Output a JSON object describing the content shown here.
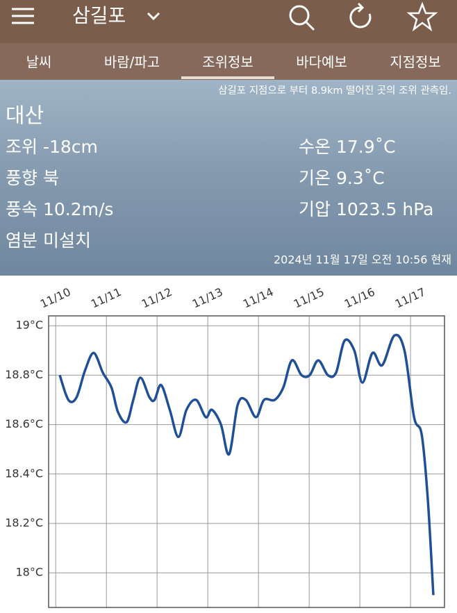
{
  "header": {
    "title": "삼길포"
  },
  "tabs": [
    "날씨",
    "바람/파고",
    "조위정보",
    "바다예보",
    "지점정보"
  ],
  "active_tab": 2,
  "info": {
    "note": "삼길포 지점으로 부터 8.9km 떨어진 곳의 조위 관측임.",
    "station": "대산",
    "left": [
      "조위 -18cm",
      "풍향 북",
      "풍속 10.2m/s",
      "염분 미설치"
    ],
    "right": [
      "수온 17.9˚C",
      "기온 9.3˚C",
      "기압 1023.5 hPa"
    ],
    "timestamp": "2024년 11월 17일 오전 10:56 현재"
  },
  "chart_data": {
    "type": "line",
    "x": [
      0.08,
      0.25,
      0.41,
      0.58,
      0.75,
      0.93,
      1.1,
      1.23,
      1.4,
      1.53,
      1.67,
      1.85,
      1.95,
      2.08,
      2.25,
      2.42,
      2.58,
      2.77,
      2.96,
      3.08,
      3.26,
      3.42,
      3.59,
      3.75,
      3.95,
      4.11,
      4.32,
      4.49,
      4.66,
      4.85,
      5.01,
      5.18,
      5.37,
      5.53,
      5.7,
      5.89,
      6.05,
      6.25,
      6.44,
      6.68,
      6.88,
      7.07,
      7.22,
      7.34,
      7.45
    ],
    "series": [
      {
        "color": "#1f4f96",
        "values": [
          18.8,
          18.7,
          18.71,
          18.82,
          18.89,
          18.81,
          18.75,
          18.65,
          18.61,
          18.7,
          18.79,
          18.71,
          18.7,
          18.76,
          18.66,
          18.55,
          18.66,
          18.7,
          18.63,
          18.66,
          18.6,
          18.48,
          18.68,
          18.7,
          18.63,
          18.7,
          18.7,
          18.75,
          18.86,
          18.8,
          18.8,
          18.86,
          18.8,
          18.81,
          18.94,
          18.9,
          18.77,
          18.89,
          18.84,
          18.96,
          18.9,
          18.63,
          18.56,
          18.3,
          17.91
        ]
      }
    ],
    "xlim": [
      -0.14,
      7.67
    ],
    "xticks": [
      {
        "value": 0,
        "label": "11/10"
      },
      {
        "value": 1,
        "label": "11/11"
      },
      {
        "value": 2,
        "label": "11/12"
      },
      {
        "value": 3,
        "label": "11/13"
      },
      {
        "value": 4,
        "label": "11/14"
      },
      {
        "value": 5,
        "label": "11/15"
      },
      {
        "value": 6,
        "label": "11/16"
      },
      {
        "value": 7,
        "label": "11/17"
      }
    ],
    "ylim": [
      17.86,
      19.04
    ],
    "yticks": [
      {
        "value": 18,
        "label": "18°C"
      },
      {
        "value": 18.2,
        "label": "18.2°C"
      },
      {
        "value": 18.4,
        "label": "18.4°C"
      },
      {
        "value": 18.6,
        "label": "18.6°C"
      },
      {
        "value": 18.8,
        "label": "18.8°C"
      },
      {
        "value": 19,
        "label": "19°C"
      }
    ],
    "grid": true
  }
}
